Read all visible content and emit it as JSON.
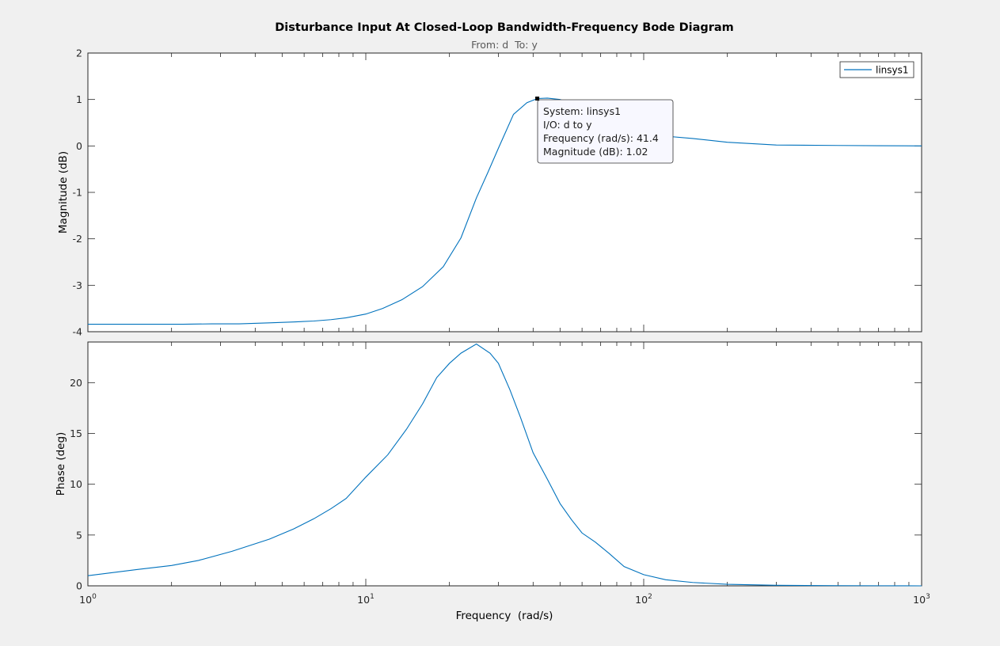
{
  "colors": {
    "figure_bg": "#f0f0f0",
    "axes_bg": "#ffffff",
    "axes_edge": "#262626",
    "tick_text": "#262626",
    "series": "#0072bd",
    "subtitle": "#595959",
    "tooltip_bg": "#f8f8ff"
  },
  "chart_data": [
    {
      "type": "line",
      "panel": "magnitude",
      "title": "Disturbance Input At Closed-Loop Bandwidth-Frequency Bode Diagram",
      "subtitle": "From: d  To: y",
      "xlabel": "",
      "ylabel": "Magnitude (dB)",
      "xscale": "log",
      "xlim": [
        1,
        1000
      ],
      "ylim": [
        -4,
        2
      ],
      "yticks": [
        "-4",
        "-3",
        "-2",
        "-1",
        "0",
        "1",
        "2"
      ],
      "grid": false,
      "legend": {
        "entries": [
          "linsys1"
        ],
        "location": "top-right"
      },
      "series": [
        {
          "name": "linsys1",
          "x": [
            1,
            1.3,
            1.7,
            2.2,
            2.8,
            3.5,
            4.5,
            5.5,
            6.5,
            7.5,
            8.5,
            10,
            11.5,
            13.5,
            16,
            19,
            22,
            25,
            27.5,
            30,
            34,
            38,
            41.4,
            45,
            50,
            55,
            60,
            65,
            70,
            80,
            90,
            100,
            120,
            150,
            200,
            300,
            500,
            700,
            1000
          ],
          "y": [
            -3.84,
            -3.84,
            -3.84,
            -3.84,
            -3.83,
            -3.83,
            -3.81,
            -3.79,
            -3.77,
            -3.74,
            -3.7,
            -3.62,
            -3.5,
            -3.31,
            -3.03,
            -2.6,
            -1.98,
            -1.12,
            -0.57,
            -0.05,
            0.68,
            0.93,
            1.02,
            1.03,
            1.0,
            0.91,
            0.8,
            0.69,
            0.59,
            0.47,
            0.37,
            0.3,
            0.21,
            0.16,
            0.08,
            0.02,
            0.01,
            0.005,
            0.0
          ]
        }
      ],
      "datatip": {
        "x": 41.4,
        "y": 1.02,
        "lines": [
          "System: linsys1",
          "I/O: d to y",
          "Frequency (rad/s): 41.4",
          "Magnitude (dB): 1.02"
        ]
      }
    },
    {
      "type": "line",
      "panel": "phase",
      "xlabel": "Frequency  (rad/s)",
      "ylabel": "Phase (deg)",
      "xscale": "log",
      "xlim": [
        1,
        1000
      ],
      "ylim": [
        0,
        24
      ],
      "xticks": [
        {
          "value": 1,
          "base": "10",
          "exp": "0"
        },
        {
          "value": 10,
          "base": "10",
          "exp": "1"
        },
        {
          "value": 100,
          "base": "10",
          "exp": "2"
        },
        {
          "value": 1000,
          "base": "10",
          "exp": "3"
        }
      ],
      "yticks": [
        "0",
        "5",
        "10",
        "15",
        "20"
      ],
      "grid": false,
      "series": [
        {
          "name": "linsys1",
          "x": [
            1,
            1.5,
            2,
            2.5,
            3.3,
            4.5,
            5.5,
            6.5,
            7.5,
            8.5,
            10,
            12,
            14,
            16,
            18,
            20,
            22,
            25,
            28,
            30,
            33,
            36,
            40,
            45,
            50,
            55,
            60,
            67,
            75,
            85,
            100,
            120,
            150,
            200,
            300,
            500,
            700,
            1000
          ],
          "y": [
            1.0,
            1.6,
            2.0,
            2.5,
            3.4,
            4.6,
            5.6,
            6.6,
            7.6,
            8.6,
            10.7,
            12.9,
            15.4,
            17.9,
            20.5,
            21.9,
            22.9,
            23.8,
            22.9,
            21.9,
            19.3,
            16.6,
            13.1,
            10.5,
            8.1,
            6.5,
            5.2,
            4.3,
            3.2,
            1.9,
            1.1,
            0.6,
            0.33,
            0.15,
            0.05,
            0.02,
            0.01,
            0.0
          ]
        }
      ]
    }
  ]
}
